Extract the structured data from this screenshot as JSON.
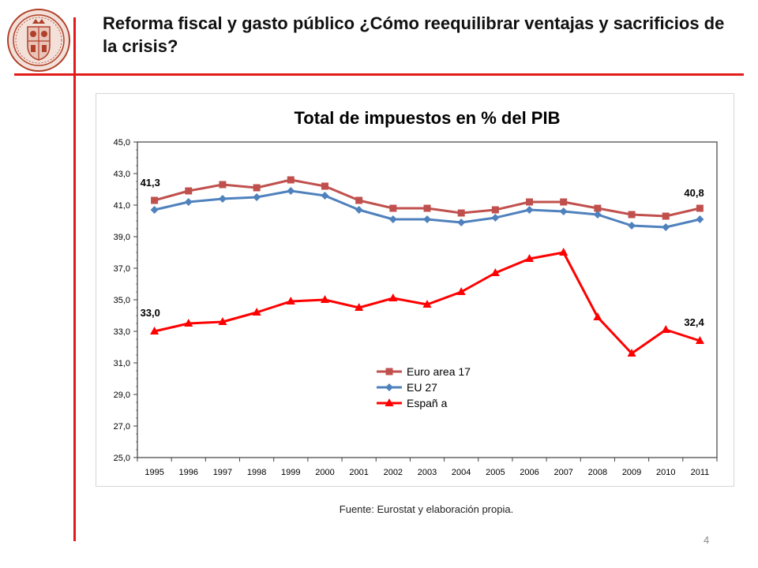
{
  "slide": {
    "title": "Reforma fiscal y gasto público ¿Cómo reequilibrar ventajas y sacrificios de la crisis?",
    "source": "Fuente: Eurostat y elaboración propia.",
    "page_number": "4"
  },
  "colors": {
    "rule_red": "#e31b1b",
    "logo": "#b0402a"
  },
  "chart_data": {
    "type": "line",
    "title": "Total de impuestos en % del PIB",
    "xlabel": "",
    "ylabel": "",
    "ylim": [
      25,
      45
    ],
    "yticks": [
      "25,0",
      "27,0",
      "29,0",
      "31,0",
      "33,0",
      "35,0",
      "37,0",
      "39,0",
      "41,0",
      "43,0",
      "45,0"
    ],
    "grid": false,
    "legend_position": "center-bottom",
    "categories": [
      "1995",
      "1996",
      "1997",
      "1998",
      "1999",
      "2000",
      "2001",
      "2002",
      "2003",
      "2004",
      "2005",
      "2006",
      "2007",
      "2008",
      "2009",
      "2010",
      "2011"
    ],
    "series": [
      {
        "name": "Euro area 17",
        "color": "#c0504d",
        "marker": "square",
        "values": [
          41.3,
          41.9,
          42.3,
          42.1,
          42.6,
          42.2,
          41.3,
          40.8,
          40.8,
          40.5,
          40.7,
          41.2,
          41.2,
          40.8,
          40.4,
          40.3,
          40.8
        ]
      },
      {
        "name": "EU 27",
        "color": "#4f81bd",
        "marker": "diamond",
        "values": [
          40.7,
          41.2,
          41.4,
          41.5,
          41.9,
          41.6,
          40.7,
          40.1,
          40.1,
          39.9,
          40.2,
          40.7,
          40.6,
          40.4,
          39.7,
          39.6,
          40.1
        ]
      },
      {
        "name": "Españ a",
        "color": "#ff0000",
        "marker": "triangle",
        "values": [
          33.0,
          33.5,
          33.6,
          34.2,
          34.9,
          35.0,
          34.5,
          35.1,
          34.7,
          35.5,
          36.7,
          37.6,
          38.0,
          33.9,
          31.6,
          33.1,
          32.4
        ]
      }
    ],
    "annotations": [
      "41,3",
      "40,8",
      "33,0",
      "32,4"
    ]
  }
}
